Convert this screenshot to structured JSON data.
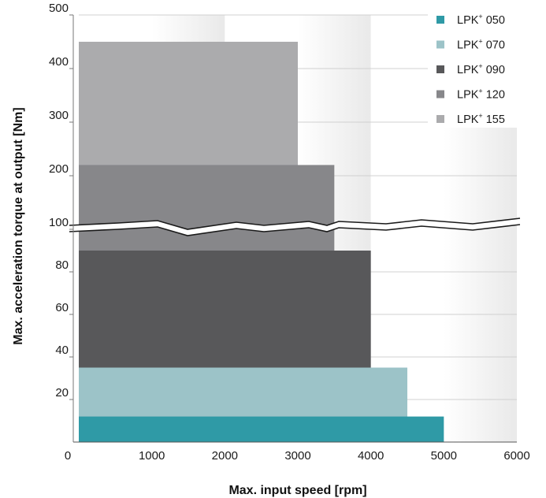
{
  "chart_data": {
    "type": "bar",
    "subtype": "horizontal step bars with broken y-axis",
    "xlabel": "Max. input speed [rpm]",
    "ylabel": "Max. acceleration torque at output [Nm]",
    "xlim": [
      0,
      6000
    ],
    "x_ticks": [
      "0",
      "1000",
      "2000",
      "3000",
      "4000",
      "5000",
      "6000"
    ],
    "y_ticks_lower": [
      "20",
      "40",
      "60",
      "80",
      "100"
    ],
    "y_ticks_upper": [
      "200",
      "300",
      "400",
      "500"
    ],
    "y_break": true,
    "grid": "horizontal",
    "legend_position": "top-right",
    "series": [
      {
        "name": "LPK",
        "sup": "+",
        "suffix": "050",
        "max_speed": 5000,
        "max_torque": 12,
        "color": "#2f9aa6"
      },
      {
        "name": "LPK",
        "sup": "+",
        "suffix": "070",
        "max_speed": 4500,
        "max_torque": 35,
        "color": "#9cc3c8"
      },
      {
        "name": "LPK",
        "sup": "+",
        "suffix": "090",
        "max_speed": 4000,
        "max_torque": 90,
        "color": "#58585a"
      },
      {
        "name": "LPK",
        "sup": "+",
        "suffix": "120",
        "max_speed": 3500,
        "max_torque": 220,
        "color": "#87878a"
      },
      {
        "name": "LPK",
        "sup": "+",
        "suffix": "155",
        "max_speed": 3000,
        "max_torque": 450,
        "color": "#ababad"
      }
    ]
  }
}
